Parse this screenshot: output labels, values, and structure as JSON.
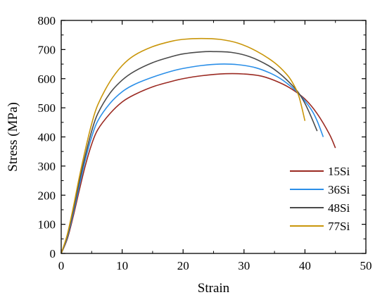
{
  "chart_data": {
    "type": "line",
    "title": "",
    "xlabel": "Strain",
    "ylabel": "Stress (MPa)",
    "xlim": [
      0,
      50
    ],
    "ylim": [
      0,
      800
    ],
    "xticks": [
      0,
      10,
      20,
      30,
      40,
      50
    ],
    "yticks": [
      0,
      100,
      200,
      300,
      400,
      500,
      600,
      700,
      800
    ],
    "grid": false,
    "legend_position": "bottom-right",
    "series": [
      {
        "name": "15Si",
        "color": "#9B2A22",
        "points": [
          [
            0,
            0
          ],
          [
            1,
            50
          ],
          [
            2,
            130
          ],
          [
            3,
            220
          ],
          [
            4,
            305
          ],
          [
            5,
            375
          ],
          [
            6,
            425
          ],
          [
            8,
            480
          ],
          [
            10,
            520
          ],
          [
            12,
            545
          ],
          [
            15,
            572
          ],
          [
            18,
            590
          ],
          [
            20,
            600
          ],
          [
            23,
            610
          ],
          [
            27,
            617
          ],
          [
            30,
            616
          ],
          [
            33,
            608
          ],
          [
            36,
            585
          ],
          [
            38,
            562
          ],
          [
            40,
            530
          ],
          [
            42,
            480
          ],
          [
            44,
            410
          ],
          [
            45,
            362
          ]
        ]
      },
      {
        "name": "36Si",
        "color": "#2B8FE8",
        "points": [
          [
            0,
            0
          ],
          [
            1,
            55
          ],
          [
            2,
            140
          ],
          [
            3,
            235
          ],
          [
            4,
            325
          ],
          [
            5,
            400
          ],
          [
            6,
            455
          ],
          [
            8,
            515
          ],
          [
            10,
            555
          ],
          [
            12,
            580
          ],
          [
            15,
            605
          ],
          [
            18,
            625
          ],
          [
            20,
            635
          ],
          [
            23,
            645
          ],
          [
            26,
            650
          ],
          [
            29,
            648
          ],
          [
            32,
            637
          ],
          [
            35,
            612
          ],
          [
            37,
            585
          ],
          [
            39,
            548
          ],
          [
            41,
            495
          ],
          [
            42,
            455
          ],
          [
            43,
            400
          ]
        ]
      },
      {
        "name": "48Si",
        "color": "#4A4A4A",
        "points": [
          [
            0,
            0
          ],
          [
            1,
            60
          ],
          [
            2,
            150
          ],
          [
            3,
            250
          ],
          [
            4,
            340
          ],
          [
            5,
            420
          ],
          [
            6,
            480
          ],
          [
            8,
            550
          ],
          [
            10,
            595
          ],
          [
            12,
            625
          ],
          [
            15,
            655
          ],
          [
            18,
            675
          ],
          [
            20,
            685
          ],
          [
            23,
            692
          ],
          [
            25,
            693
          ],
          [
            28,
            690
          ],
          [
            31,
            675
          ],
          [
            34,
            645
          ],
          [
            36,
            615
          ],
          [
            38,
            575
          ],
          [
            39,
            550
          ],
          [
            40,
            515
          ],
          [
            41,
            470
          ],
          [
            42,
            420
          ]
        ]
      },
      {
        "name": "77Si",
        "color": "#C9960A",
        "points": [
          [
            0,
            0
          ],
          [
            1,
            65
          ],
          [
            2,
            160
          ],
          [
            3,
            265
          ],
          [
            4,
            360
          ],
          [
            5,
            445
          ],
          [
            6,
            510
          ],
          [
            8,
            590
          ],
          [
            10,
            645
          ],
          [
            12,
            680
          ],
          [
            15,
            710
          ],
          [
            18,
            728
          ],
          [
            20,
            735
          ],
          [
            23,
            738
          ],
          [
            26,
            735
          ],
          [
            29,
            722
          ],
          [
            32,
            695
          ],
          [
            35,
            655
          ],
          [
            37,
            615
          ],
          [
            38,
            585
          ],
          [
            39,
            540
          ],
          [
            40,
            455
          ]
        ]
      }
    ]
  }
}
